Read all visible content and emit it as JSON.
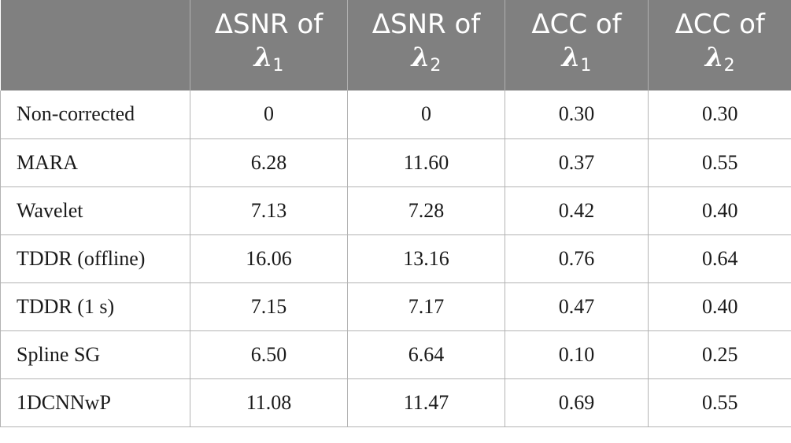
{
  "table": {
    "headers": [
      {
        "line1": "",
        "symbol": "",
        "index": ""
      },
      {
        "line1": "ΔSNR of",
        "symbol": "λ",
        "index": "1"
      },
      {
        "line1": "ΔSNR of",
        "symbol": "λ",
        "index": "2"
      },
      {
        "line1": "ΔCC of",
        "symbol": "λ",
        "index": "1"
      },
      {
        "line1": "ΔCC of",
        "symbol": "λ",
        "index": "2"
      }
    ],
    "rows": [
      {
        "method": "Non-corrected",
        "snr1": "0",
        "snr2": "0",
        "cc1": "0.30",
        "cc2": "0.30"
      },
      {
        "method": "MARA",
        "snr1": "6.28",
        "snr2": "11.60",
        "cc1": "0.37",
        "cc2": "0.55"
      },
      {
        "method": "Wavelet",
        "snr1": "7.13",
        "snr2": "7.28",
        "cc1": "0.42",
        "cc2": "0.40"
      },
      {
        "method": "TDDR (offline)",
        "snr1": "16.06",
        "snr2": "13.16",
        "cc1": "0.76",
        "cc2": "0.64"
      },
      {
        "method": "TDDR (1 s)",
        "snr1": "7.15",
        "snr2": "7.17",
        "cc1": "0.47",
        "cc2": "0.40"
      },
      {
        "method": "Spline SG",
        "snr1": "6.50",
        "snr2": "6.64",
        "cc1": "0.10",
        "cc2": "0.25"
      },
      {
        "method": "1DCNNwP",
        "snr1": "11.08",
        "snr2": "11.47",
        "cc1": "0.69",
        "cc2": "0.55"
      }
    ]
  },
  "colors": {
    "header_background": "#808080",
    "header_text": "#ffffff",
    "grid_lines": "#b3b3b3",
    "body_text": "#1a1a1a"
  }
}
